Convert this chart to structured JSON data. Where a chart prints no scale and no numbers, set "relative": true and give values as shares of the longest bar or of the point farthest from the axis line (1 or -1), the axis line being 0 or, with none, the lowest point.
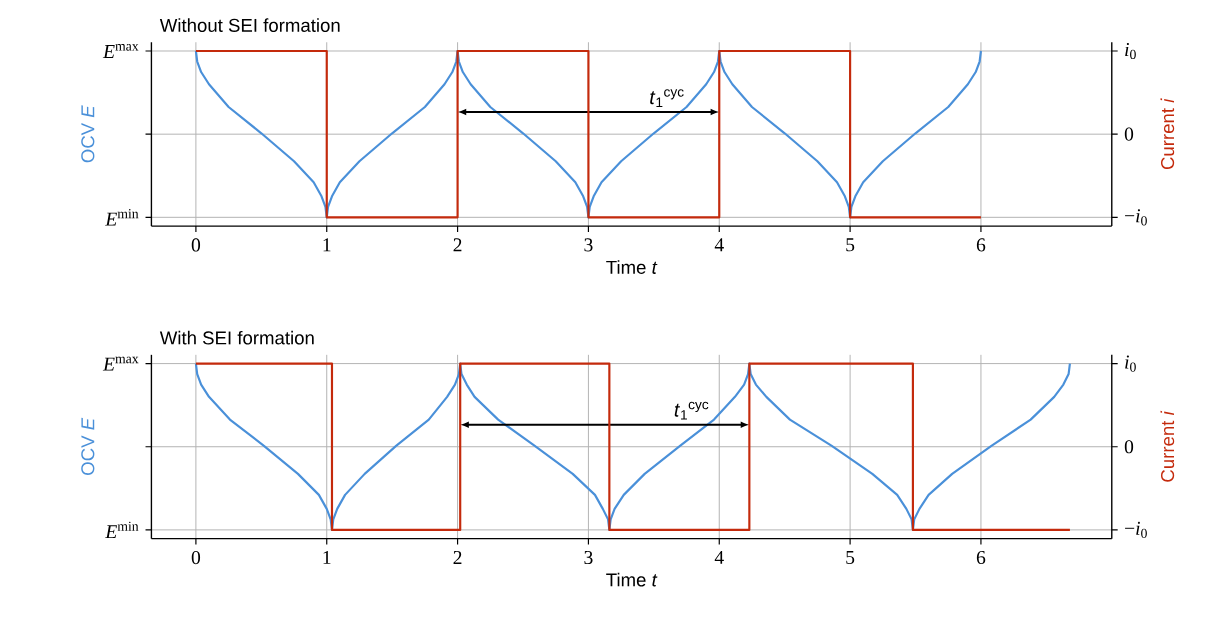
{
  "chart_data": [
    {
      "type": "line",
      "relative": true,
      "title": "Without SEI formation",
      "xlabel": "Time *t*",
      "ylabel": "OCV *E*",
      "y2label": "Current *i*",
      "xlim": [
        -0.34,
        7.0
      ],
      "xticks": [
        0,
        1,
        2,
        3,
        4,
        5,
        6
      ],
      "grid": true,
      "annotations": [
        "*t*$_{1}$$^{cyc}$",
        "*E*$^{max}$",
        "*E*$^{min}$",
        "*i*$_{0}$",
        "0",
        "−*i*$_{0}$"
      ],
      "series": [
        {
          "color": "#4a90d9",
          "x": [
            0,
            0.01,
            0.04,
            0.1,
            0.25,
            0.5,
            0.75,
            0.9,
            0.96,
            0.99,
            1,
            1.01,
            1.04,
            1.1,
            1.25,
            1.5,
            1.75,
            1.9,
            1.96,
            1.99,
            2,
            2.01,
            2.04,
            2.1,
            2.25,
            2.5,
            2.75,
            2.9,
            2.96,
            2.99,
            3,
            3.01,
            3.04,
            3.1,
            3.25,
            3.5,
            3.75,
            3.9,
            3.96,
            3.99,
            4,
            4.01,
            4.04,
            4.1,
            4.25,
            4.5,
            4.75,
            4.9,
            4.96,
            4.99,
            5,
            5.01,
            5.04,
            5.1,
            5.25,
            5.5,
            5.75,
            5.9,
            5.96,
            5.99,
            6
          ],
          "values": [
            1,
            0.94,
            0.88,
            0.81,
            0.68,
            0.53,
            0.37,
            0.25,
            0.17,
            0.11,
            0.05,
            0.11,
            0.17,
            0.25,
            0.37,
            0.53,
            0.68,
            0.81,
            0.88,
            0.94,
            1,
            0.94,
            0.88,
            0.81,
            0.68,
            0.53,
            0.37,
            0.25,
            0.17,
            0.11,
            0.05,
            0.11,
            0.17,
            0.25,
            0.37,
            0.53,
            0.68,
            0.81,
            0.88,
            0.94,
            1,
            0.94,
            0.88,
            0.81,
            0.68,
            0.53,
            0.37,
            0.25,
            0.17,
            0.11,
            0.05,
            0.11,
            0.17,
            0.25,
            0.37,
            0.53,
            0.68,
            0.81,
            0.88,
            0.94,
            1
          ]
        },
        {
          "type": "step",
          "axis": "y2",
          "color": "#c42a0c",
          "x": [
            0,
            1,
            2,
            3,
            4,
            5,
            6
          ],
          "values": [
            1,
            0.05,
            1,
            0.05,
            1,
            0.05,
            0.05
          ]
        }
      ]
    },
    {
      "type": "line",
      "relative": true,
      "title": "With SEI formation",
      "xlabel": "Time *t*",
      "ylabel": "OCV *E*",
      "y2label": "Current *i*",
      "xlim": [
        -0.34,
        7.0
      ],
      "xticks": [
        0,
        1,
        2,
        3,
        4,
        5,
        6
      ],
      "grid": true,
      "annotations": [
        "*t*$_{1}$$^{cyc}$",
        "*E*$^{max}$",
        "*E*$^{min}$",
        "*i*$_{0}$",
        "0",
        "−*i*$_{0}$"
      ],
      "series": [
        {
          "color": "#4a90d9",
          "x": [
            0,
            0.01,
            0.04,
            0.1,
            0.26,
            0.52,
            0.78,
            0.94,
            1.0,
            1.03,
            1.04,
            1.05,
            1.08,
            1.14,
            1.29,
            1.53,
            1.78,
            1.92,
            1.98,
            2.01,
            2.02,
            2.03,
            2.07,
            2.13,
            2.31,
            2.59,
            2.88,
            3.05,
            3.11,
            3.15,
            3.16,
            3.17,
            3.2,
            3.27,
            3.43,
            3.7,
            3.96,
            4.12,
            4.19,
            4.22,
            4.23,
            4.24,
            4.28,
            4.36,
            4.54,
            4.86,
            5.17,
            5.36,
            5.43,
            5.47,
            5.48,
            5.49,
            5.53,
            5.6,
            5.78,
            6.08,
            6.38,
            6.56,
            6.63,
            6.67,
            6.68
          ],
          "values": [
            1,
            0.94,
            0.88,
            0.81,
            0.68,
            0.53,
            0.37,
            0.25,
            0.17,
            0.11,
            0.05,
            0.11,
            0.17,
            0.25,
            0.37,
            0.53,
            0.68,
            0.81,
            0.88,
            0.94,
            1,
            0.94,
            0.88,
            0.81,
            0.68,
            0.53,
            0.37,
            0.25,
            0.17,
            0.11,
            0.05,
            0.11,
            0.17,
            0.25,
            0.37,
            0.53,
            0.68,
            0.81,
            0.88,
            0.94,
            1,
            0.94,
            0.88,
            0.81,
            0.68,
            0.53,
            0.37,
            0.25,
            0.17,
            0.11,
            0.05,
            0.11,
            0.17,
            0.25,
            0.37,
            0.53,
            0.68,
            0.81,
            0.88,
            0.94,
            1
          ]
        },
        {
          "type": "step",
          "axis": "y2",
          "color": "#c42a0c",
          "x": [
            0,
            1.04,
            2.02,
            3.16,
            4.23,
            5.48,
            6.68
          ],
          "values": [
            1,
            0.05,
            1,
            0.05,
            1,
            0.05,
            0.05
          ]
        }
      ]
    }
  ]
}
